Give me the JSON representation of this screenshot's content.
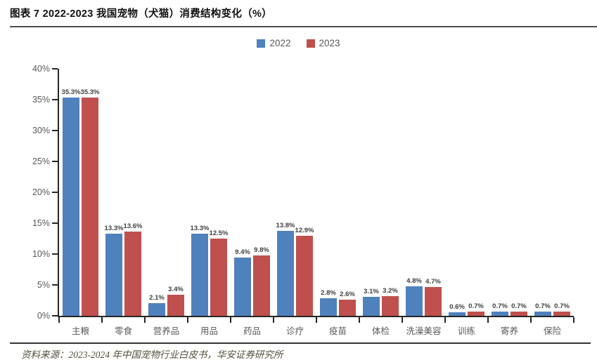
{
  "header": {
    "title": "图表 7 2022-2023 我国宠物（犬猫）消费结构变化（%）"
  },
  "legend": {
    "items": [
      {
        "label": "2022",
        "color": "#4f81bd"
      },
      {
        "label": "2023",
        "color": "#c0504d"
      }
    ],
    "position": "top-center"
  },
  "chart_data": {
    "type": "bar",
    "title": "2022-2023 我国宠物（犬猫）消费结构变化（%）",
    "categories": [
      "主粮",
      "零食",
      "营养品",
      "用品",
      "药品",
      "诊疗",
      "疫苗",
      "体检",
      "洗澡美容",
      "训练",
      "寄养",
      "保险"
    ],
    "series": [
      {
        "name": "2022",
        "color": "#4f81bd",
        "values": [
          35.3,
          13.3,
          2.1,
          13.3,
          9.4,
          13.8,
          2.8,
          3.1,
          4.8,
          0.6,
          0.7,
          0.7
        ]
      },
      {
        "name": "2023",
        "color": "#c0504d",
        "values": [
          35.3,
          13.6,
          3.4,
          12.5,
          9.8,
          12.9,
          2.6,
          3.2,
          4.7,
          0.7,
          0.7,
          0.7
        ]
      }
    ],
    "xlabel": "",
    "ylabel": "",
    "ylim": [
      0,
      40
    ],
    "yticks": [
      "0%",
      "5%",
      "10%",
      "15%",
      "20%",
      "25%",
      "30%",
      "35%",
      "40%"
    ],
    "grid": false,
    "value_labels": true,
    "value_label_suffix": "%"
  },
  "colors": {
    "series_2022": "#4f81bd",
    "series_2023": "#c0504d",
    "axis": "#262626",
    "axis_text": "#595959",
    "value_label_text": "#404040",
    "title_text": "#111111",
    "source_text": "#55503e"
  },
  "footer": {
    "source": "资料来源：2023-2024 年中国宠物行业白皮书，华安证券研究所"
  }
}
